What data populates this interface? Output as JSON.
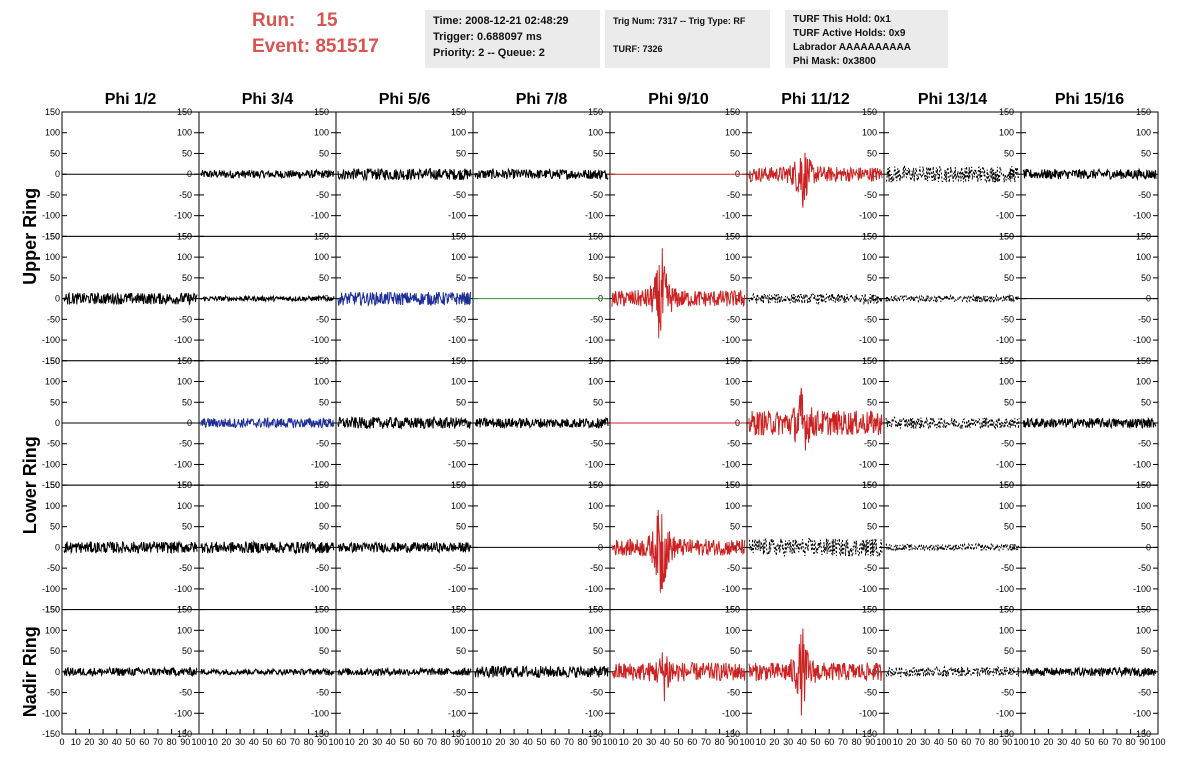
{
  "header": {
    "run_label": "Run:",
    "run_value": "15",
    "event_label": "Event:",
    "event_value": "851517",
    "box1": [
      "Time: 2008-12-21 02:48:29",
      "Trigger: 0.688097 ms",
      "Priority: 2 -- Queue: 2"
    ],
    "box2": [
      "Trig Num: 7317 -- Trig Type: RF",
      "TURF: 7326"
    ],
    "box3": [
      "TURF This Hold: 0x1",
      "TURF Active Holds: 0x9",
      "Labrador AAAAAAAAAA",
      "Phi Mask: 0x3800"
    ]
  },
  "chart_data": {
    "type": "line",
    "columns": [
      "Phi 1/2",
      "Phi 3/4",
      "Phi 5/6",
      "Phi 7/8",
      "Phi 9/10",
      "Phi 11/12",
      "Phi 13/14",
      "Phi 15/16"
    ],
    "rows": [
      {
        "ring": "Upper Ring",
        "rows": 2
      },
      {
        "ring": "Lower Ring",
        "rows": 2
      },
      {
        "ring": "Nadir Ring",
        "rows": 1
      }
    ],
    "ylim": [
      -150,
      150
    ],
    "yticks": [
      150,
      100,
      50,
      0,
      -50,
      -100,
      -150
    ],
    "xlim": [
      0,
      100
    ],
    "xticks": [
      "0",
      "10",
      "20",
      "30",
      "40",
      "50",
      "60",
      "70",
      "80",
      "90",
      "100"
    ],
    "colors": {
      "black": "#000000",
      "red": "#cc2222",
      "blue": "#1f2f99",
      "green": "#2e9a2e"
    },
    "panels": [
      [
        {
          "style": "flat",
          "color": "black"
        },
        {
          "style": "noise",
          "color": "black",
          "amp": 10
        },
        {
          "style": "noise",
          "color": "black",
          "amp": 14
        },
        {
          "style": "noise",
          "color": "black",
          "amp": 12
        },
        {
          "style": "flat",
          "color": "red"
        },
        {
          "style": "pulse",
          "color": "red",
          "amp": 18,
          "peak": 90,
          "center": 40
        },
        {
          "style": "dashed",
          "color": "black",
          "amp": 20
        },
        {
          "style": "noise",
          "color": "black",
          "amp": 12
        }
      ],
      [
        {
          "style": "noise",
          "color": "black",
          "amp": 14
        },
        {
          "style": "noise",
          "color": "black",
          "amp": 6
        },
        {
          "style": "noise",
          "color": "blue",
          "amp": 16
        },
        {
          "style": "flat",
          "color": "green"
        },
        {
          "style": "pulse",
          "color": "red",
          "amp": 20,
          "peak": 130,
          "center": 37
        },
        {
          "style": "dashed",
          "color": "black",
          "amp": 12
        },
        {
          "style": "dashed",
          "color": "black",
          "amp": 8
        },
        {
          "style": "flat",
          "color": "black"
        }
      ],
      [
        {
          "style": "flat",
          "color": "black"
        },
        {
          "style": "noise",
          "color": "blue",
          "amp": 12
        },
        {
          "style": "noise",
          "color": "black",
          "amp": 14
        },
        {
          "style": "noise",
          "color": "black",
          "amp": 12
        },
        {
          "style": "flat",
          "color": "red"
        },
        {
          "style": "pulse",
          "color": "red",
          "amp": 30,
          "peak": 75,
          "center": 40
        },
        {
          "style": "dashed",
          "color": "black",
          "amp": 14
        },
        {
          "style": "noise",
          "color": "black",
          "amp": 12
        }
      ],
      [
        {
          "style": "noise",
          "color": "black",
          "amp": 14
        },
        {
          "style": "noise",
          "color": "black",
          "amp": 14
        },
        {
          "style": "noise",
          "color": "black",
          "amp": 12
        },
        {
          "style": "flat",
          "color": "black"
        },
        {
          "style": "pulse",
          "color": "red",
          "amp": 20,
          "peak": 140,
          "center": 37
        },
        {
          "style": "dashed",
          "color": "black",
          "amp": 22
        },
        {
          "style": "dashed",
          "color": "black",
          "amp": 8
        },
        {
          "style": "flat",
          "color": "black"
        }
      ],
      [
        {
          "style": "noise",
          "color": "black",
          "amp": 10
        },
        {
          "style": "noise",
          "color": "black",
          "amp": 7
        },
        {
          "style": "noise",
          "color": "black",
          "amp": 9
        },
        {
          "style": "noise",
          "color": "black",
          "amp": 14
        },
        {
          "style": "pulse",
          "color": "red",
          "amp": 22,
          "peak": 60,
          "center": 40
        },
        {
          "style": "pulse",
          "color": "red",
          "amp": 22,
          "peak": 100,
          "center": 40
        },
        {
          "style": "dashed",
          "color": "black",
          "amp": 12
        },
        {
          "style": "noise",
          "color": "black",
          "amp": 10
        }
      ]
    ]
  }
}
